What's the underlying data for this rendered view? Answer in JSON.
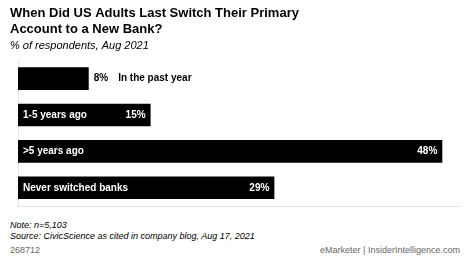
{
  "chart_data": {
    "type": "bar",
    "orientation": "horizontal",
    "title": [
      "When Did US Adults Last Switch Their Primary",
      "Account to a New Bank?"
    ],
    "subtitle": "% of respondents, Aug 2021",
    "categories": [
      "In the past year",
      "1-5 years ago",
      ">5 years ago",
      "Never switched banks"
    ],
    "values": [
      8,
      15,
      48,
      29
    ],
    "value_labels": [
      "8%",
      "15%",
      "48%",
      "29%"
    ],
    "data_labels": true,
    "color": "#000000",
    "xlim": [
      0,
      50
    ],
    "grid": false,
    "tick_labels": false,
    "annotations": [
      "Note: n=5,103",
      "Source: CivicScience as cited in company blog, Aug 17, 2021",
      "268712",
      "eMarketer | InsiderIntelligence.com"
    ]
  }
}
